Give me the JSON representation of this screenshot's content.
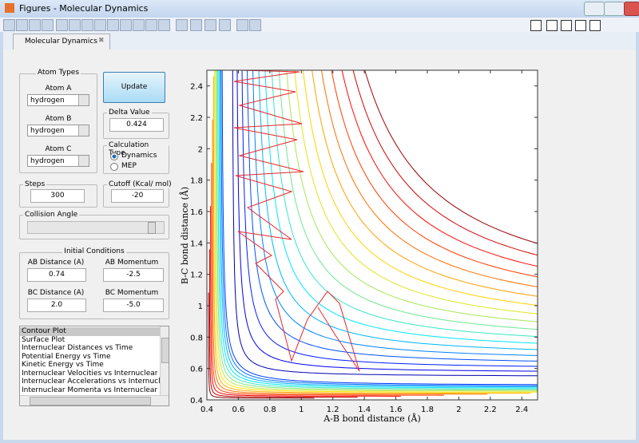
{
  "window": {
    "title": "Figures - Molecular Dynamics"
  },
  "tab": {
    "label": "Molecular Dynamics"
  },
  "controls": {
    "atom_types": {
      "title": "Atom Types",
      "atom_a": {
        "label": "Atom A",
        "value": "hydrogen"
      },
      "atom_b": {
        "label": "Atom B",
        "value": "hydrogen"
      },
      "atom_c": {
        "label": "Atom C",
        "value": "hydrogen"
      }
    },
    "update_button": "Update",
    "delta_value": {
      "label": "Delta Value",
      "value": "0.424"
    },
    "calculation_type": {
      "label": "Calculation Type",
      "options": [
        "Dynamics",
        "MEP"
      ],
      "selected": 0
    },
    "steps": {
      "label": "Steps",
      "value": "300"
    },
    "cutoff": {
      "label": "Cutoff (Kcal/ mol)",
      "value": "-20"
    },
    "collision_angle": {
      "label": "Collision Angle"
    },
    "initial_conditions": {
      "title": "Initial Conditions",
      "ab_distance": {
        "label": "AB Distance (A)",
        "value": "0.74"
      },
      "ab_momentum": {
        "label": "AB Momentum",
        "value": "-2.5"
      },
      "bc_distance": {
        "label": "BC Distance (A)",
        "value": "2.0"
      },
      "bc_momentum": {
        "label": "BC Momentum",
        "value": "-5.0"
      }
    },
    "plot_list": {
      "items": [
        "Contour Plot",
        "Surface Plot",
        "Internuclear Distances vs Time",
        "Potential Energy vs Time",
        "Kinetic Energy vs Time",
        "Internuclear Velocities vs Internuclear Distance",
        "Internuclear Accelerations vs Internuclear Dista",
        "Internuclear Momenta vs Internuclear Distance"
      ],
      "selected": 0
    }
  },
  "chart_data": {
    "type": "contour",
    "xlabel": "A-B bond distance (Å)",
    "ylabel": "B-C bond distance (Å)",
    "xlim": [
      0.4,
      2.5
    ],
    "ylim": [
      0.4,
      2.5
    ],
    "xticks": [
      0.4,
      0.6,
      0.8,
      1,
      1.2,
      1.4,
      1.6,
      1.8,
      2,
      2.2,
      2.4
    ],
    "yticks": [
      0.4,
      0.6,
      0.8,
      1,
      1.2,
      1.4,
      1.6,
      1.8,
      2,
      2.2,
      2.4
    ]
  }
}
